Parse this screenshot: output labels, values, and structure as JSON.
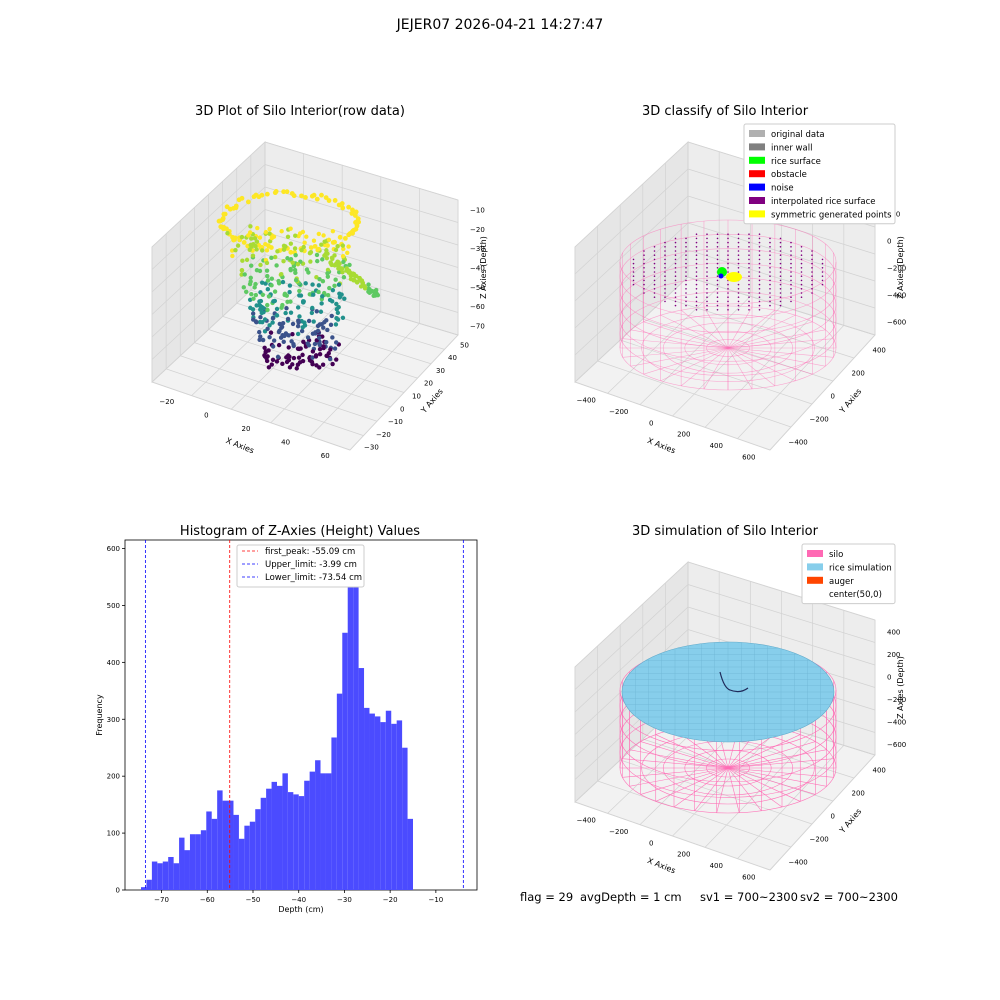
{
  "suptitle": "JEJER07 2026-04-21 14:27:47",
  "status": {
    "flag": "flag = 29",
    "avg_depth": "avgDepth = 1 cm",
    "sv1": "sv1 = 700~2300",
    "sv2": "sv2 = 700~2300"
  },
  "chart_data": [
    {
      "type": "scatter",
      "title": "3D Plot of Silo Interior(row data)",
      "xlabel": "X Axies",
      "ylabel": "Y Axies",
      "zlabel": "Z Axies (Depth)",
      "x_ticks": [
        "−20",
        "0",
        "20",
        "40",
        "60"
      ],
      "y_ticks": [
        "−30",
        "−20",
        "−10",
        "0",
        "10",
        "20",
        "30",
        "40",
        "50"
      ],
      "z_ticks": [
        "−70",
        "−60",
        "−50",
        "−40",
        "−30",
        "−20",
        "−10"
      ],
      "colormap": "viridis",
      "grid": true
    },
    {
      "type": "scatter",
      "title": "3D classify of Silo Interior",
      "xlabel": "X Axies",
      "ylabel": "Y Axies",
      "zlabel": "Z Axies (Depth)",
      "x_ticks": [
        "−400",
        "−200",
        "0",
        "200",
        "400",
        "600"
      ],
      "y_ticks": [
        "−400",
        "−200",
        "0",
        "200",
        "400"
      ],
      "z_ticks": [
        "−600",
        "−400",
        "−200",
        "0",
        "200"
      ],
      "legend_position": "top-right",
      "legend": [
        {
          "label": "original data",
          "color": "#b0b0b0"
        },
        {
          "label": "inner wall",
          "color": "#808080"
        },
        {
          "label": "rice surface",
          "color": "#00ff00"
        },
        {
          "label": "obstacle",
          "color": "#ff0000"
        },
        {
          "label": "noise",
          "color": "#0000ff"
        },
        {
          "label": "interpolated rice surface",
          "color": "#800080"
        },
        {
          "label": "symmetric generated points",
          "color": "#ffff00"
        }
      ],
      "grid": true
    },
    {
      "type": "bar",
      "title": "Histogram of Z-Axies (Height) Values",
      "xlabel": "Depth (cm)",
      "ylabel": "Frequency",
      "bar_color": "#4b4bff",
      "bin_start": -74.5,
      "bin_width": 1.19,
      "counts": [
        5,
        18,
        50,
        47,
        50,
        58,
        47,
        92,
        70,
        98,
        98,
        105,
        138,
        125,
        175,
        157,
        157,
        132,
        90,
        113,
        120,
        142,
        162,
        178,
        190,
        183,
        205,
        172,
        168,
        165,
        192,
        208,
        228,
        205,
        205,
        268,
        345,
        452,
        585,
        560,
        390,
        320,
        310,
        305,
        295,
        315,
        292,
        298,
        250,
        125
      ],
      "xlim": [
        -78,
        -1
      ],
      "ylim": [
        0,
        615
      ],
      "x_ticks": [
        -70,
        -60,
        -50,
        -40,
        -30,
        -20,
        -10
      ],
      "x_tick_labels": [
        "−70",
        "−60",
        "−50",
        "−40",
        "−30",
        "−20",
        "−10"
      ],
      "y_ticks": [
        0,
        100,
        200,
        300,
        400,
        500,
        600
      ],
      "vlines": [
        {
          "label": "first_peak: -55.09 cm",
          "x": -55.09,
          "color": "#ff0000"
        },
        {
          "label": "Upper_limit: -3.99 cm",
          "x": -3.99,
          "color": "#0000ff"
        },
        {
          "label": "Lower_limit: -73.54 cm",
          "x": -73.54,
          "color": "#0000ff"
        }
      ],
      "legend_position": "upper center"
    },
    {
      "type": "scatter",
      "title": "3D simulation of Silo Interior",
      "xlabel": "X Axies",
      "ylabel": "Y Axies",
      "zlabel": "Z Axies (Depth)",
      "x_ticks": [
        "−400",
        "−200",
        "0",
        "200",
        "400",
        "600"
      ],
      "y_ticks": [
        "−400",
        "−200",
        "0",
        "200",
        "400"
      ],
      "z_ticks": [
        "−600",
        "−400",
        "−200",
        "0",
        "200",
        "400"
      ],
      "legend_position": "top-right",
      "legend": [
        {
          "label": "silo",
          "color": "#ff69b4"
        },
        {
          "label": "rice simulation",
          "color": "#87ceeb"
        },
        {
          "label": "auger",
          "color": "#ff4500"
        },
        {
          "label": "center(50,0)",
          "color": "#ffffff"
        }
      ],
      "grid": true
    }
  ]
}
